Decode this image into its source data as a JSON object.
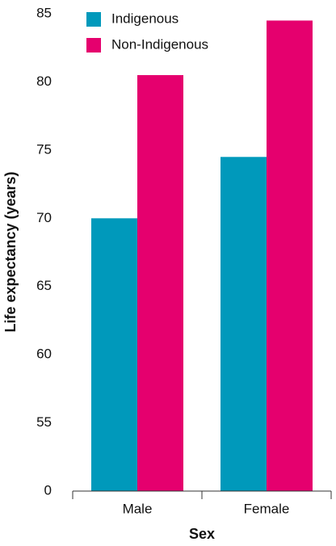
{
  "chart_data": {
    "type": "bar",
    "x_label": "Sex",
    "y_label": "Life expectancy (years)",
    "categories": [
      "Male",
      "Female"
    ],
    "series": [
      {
        "name": "Indigenous",
        "color": "#0099bb",
        "values": [
          70,
          74.5
        ]
      },
      {
        "name": "Non-Indigenous",
        "color": "#e5006e",
        "values": [
          80.5,
          84.5
        ]
      }
    ],
    "ylim": [
      0,
      85
    ],
    "yticks": [
      0,
      55,
      60,
      65,
      70,
      75,
      80,
      85
    ],
    "axis_break": true,
    "legend": "top-left"
  }
}
